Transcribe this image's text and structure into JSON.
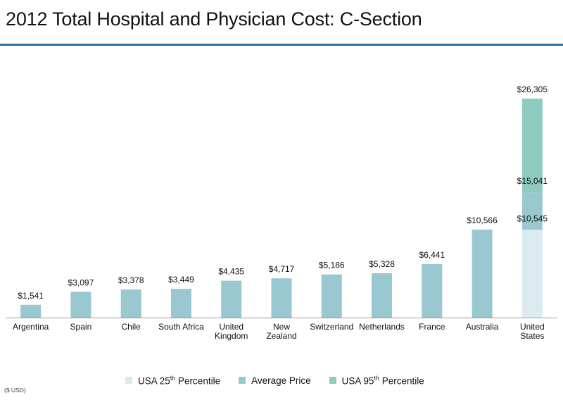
{
  "title": "2012 Total Hospital and Physician Cost: C-Section",
  "footnote": "($ USD)",
  "colors": {
    "average": "#99c8d1",
    "p25": "#dcebf0",
    "p95": "#8fcbbe",
    "rule": "#2f6fa6"
  },
  "legend": [
    {
      "pre": "USA 25",
      "sup": "th",
      "post": " Percentile",
      "color": "#dcebf0"
    },
    {
      "pre": "Average Price",
      "sup": "",
      "post": "",
      "color": "#99c8d1"
    },
    {
      "pre": "USA  95",
      "sup": "th",
      "post": " Percentile",
      "color": "#8fcbbe"
    }
  ],
  "chart_data": {
    "type": "bar",
    "categories": [
      "Argentina",
      "Spain",
      "Chile",
      "South Africa",
      "United Kingdom",
      "New Zealand",
      "Switzerland",
      "Netherlands",
      "France",
      "Australia",
      "United States"
    ],
    "category_lines": [
      [
        "Argentina"
      ],
      [
        "Spain"
      ],
      [
        "Chile"
      ],
      [
        "South Africa"
      ],
      [
        "United",
        "Kingdom"
      ],
      [
        "New",
        "Zealand"
      ],
      [
        "Switzerland"
      ],
      [
        "Netherlands"
      ],
      [
        "France"
      ],
      [
        "Australia"
      ],
      [
        "United",
        "States"
      ]
    ],
    "values": [
      1541,
      3097,
      3378,
      3449,
      4435,
      4717,
      5186,
      5328,
      6441,
      10566,
      15041
    ],
    "labels": [
      "$1,541",
      "$3,097",
      "$3,378",
      "$3,449",
      "$4,435",
      "$4,717",
      "$5,186",
      "$5,328",
      "$6,441",
      "$10,566",
      "$15,041"
    ],
    "usa": {
      "p25": 10545,
      "average": 15041,
      "p95": 26305,
      "p25_label": "$10,545",
      "avg_label": "$15,041",
      "p95_label": "$26,305"
    },
    "ylim": [
      0,
      27000
    ],
    "grid": false,
    "legend_position": "bottom"
  }
}
